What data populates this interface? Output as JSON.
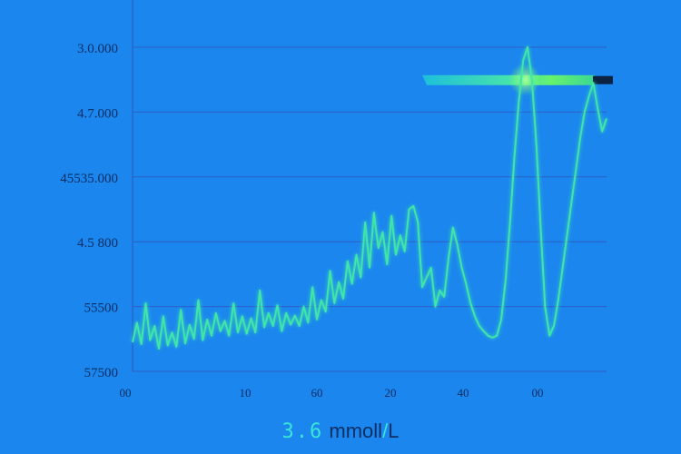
{
  "chart_data": {
    "type": "line",
    "title": "",
    "xlabel": "",
    "ylabel": "",
    "y_ticks": [
      "3.0.000",
      "4.7.000",
      "45535.000",
      "4.5 800",
      "55500",
      "57500"
    ],
    "x_ticks": [
      "00",
      "10",
      "60",
      "20",
      "40",
      "00"
    ],
    "grid": "horizontal",
    "series": [
      {
        "values": [
          [
            0,
            4.95
          ],
          [
            1,
            5.25
          ],
          [
            2,
            4.92
          ],
          [
            3,
            5.55
          ],
          [
            4,
            4.98
          ],
          [
            5,
            5.2
          ],
          [
            6,
            4.85
          ],
          [
            7,
            5.35
          ],
          [
            8,
            4.9
          ],
          [
            9,
            5.1
          ],
          [
            10,
            4.88
          ],
          [
            11,
            5.45
          ],
          [
            12,
            4.93
          ],
          [
            13,
            5.22
          ],
          [
            14,
            5.0
          ],
          [
            15,
            5.6
          ],
          [
            16,
            4.98
          ],
          [
            17,
            5.3
          ],
          [
            18,
            5.05
          ],
          [
            19,
            5.4
          ],
          [
            20,
            5.12
          ],
          [
            21,
            5.28
          ],
          [
            22,
            5.05
          ],
          [
            23,
            5.55
          ],
          [
            24,
            5.1
          ],
          [
            25,
            5.35
          ],
          [
            26,
            5.08
          ],
          [
            27,
            5.32
          ],
          [
            28,
            5.1
          ],
          [
            29,
            5.75
          ],
          [
            30,
            5.18
          ],
          [
            31,
            5.4
          ],
          [
            32,
            5.2
          ],
          [
            33,
            5.52
          ],
          [
            34,
            5.12
          ],
          [
            35,
            5.4
          ],
          [
            36,
            5.22
          ],
          [
            37,
            5.36
          ],
          [
            38,
            5.2
          ],
          [
            39,
            5.5
          ],
          [
            40,
            5.25
          ],
          [
            41,
            5.8
          ],
          [
            42,
            5.3
          ],
          [
            43,
            5.6
          ],
          [
            44,
            5.42
          ],
          [
            45,
            6.05
          ],
          [
            46,
            5.55
          ],
          [
            47,
            5.88
          ],
          [
            48,
            5.62
          ],
          [
            49,
            6.2
          ],
          [
            50,
            5.85
          ],
          [
            51,
            6.3
          ],
          [
            52,
            5.95
          ],
          [
            53,
            6.8
          ],
          [
            54,
            6.1
          ],
          [
            55,
            6.95
          ],
          [
            56,
            6.4
          ],
          [
            57,
            6.65
          ],
          [
            58,
            6.15
          ],
          [
            59,
            6.9
          ],
          [
            60,
            6.3
          ],
          [
            61,
            6.6
          ],
          [
            62,
            6.35
          ],
          [
            63,
            7.0
          ],
          [
            64,
            7.05
          ],
          [
            65,
            6.8
          ],
          [
            66,
            5.8
          ],
          [
            67,
            5.95
          ],
          [
            68,
            6.1
          ],
          [
            69,
            5.5
          ],
          [
            70,
            5.75
          ],
          [
            71,
            5.65
          ],
          [
            72,
            6.25
          ],
          [
            73,
            6.72
          ],
          [
            74,
            6.45
          ],
          [
            75,
            6.1
          ],
          [
            76,
            5.85
          ],
          [
            77,
            5.55
          ],
          [
            78,
            5.35
          ],
          [
            79,
            5.2
          ],
          [
            80,
            5.12
          ],
          [
            81,
            5.05
          ],
          [
            82,
            5.02
          ],
          [
            83,
            5.05
          ],
          [
            84,
            5.3
          ],
          [
            85,
            5.9
          ],
          [
            86,
            6.8
          ],
          [
            87,
            7.8
          ],
          [
            88,
            8.65
          ],
          [
            89,
            9.3
          ],
          [
            90,
            9.5
          ],
          [
            91,
            9.0
          ],
          [
            92,
            8.0
          ],
          [
            93,
            6.7
          ],
          [
            94,
            5.5
          ],
          [
            95,
            5.05
          ],
          [
            96,
            5.2
          ],
          [
            97,
            5.6
          ],
          [
            98,
            6.1
          ],
          [
            99,
            6.6
          ],
          [
            100,
            7.1
          ],
          [
            101,
            7.6
          ],
          [
            102,
            8.1
          ],
          [
            103,
            8.5
          ],
          [
            104,
            8.75
          ],
          [
            105,
            8.95
          ],
          [
            106,
            8.55
          ],
          [
            107,
            8.2
          ],
          [
            108,
            8.4
          ]
        ]
      }
    ],
    "colors": {
      "background": "#1a86ee",
      "line": "#3fe6a9",
      "grid": "#2a5fc4",
      "tick_text": "#0c2e63",
      "highlight": "#6dff5e"
    },
    "highlight_bar": {
      "value": 9.0
    }
  },
  "readout": {
    "value": "3.6",
    "unit_main": "mmoll",
    "slash": "/",
    "unit_tail": "L"
  }
}
